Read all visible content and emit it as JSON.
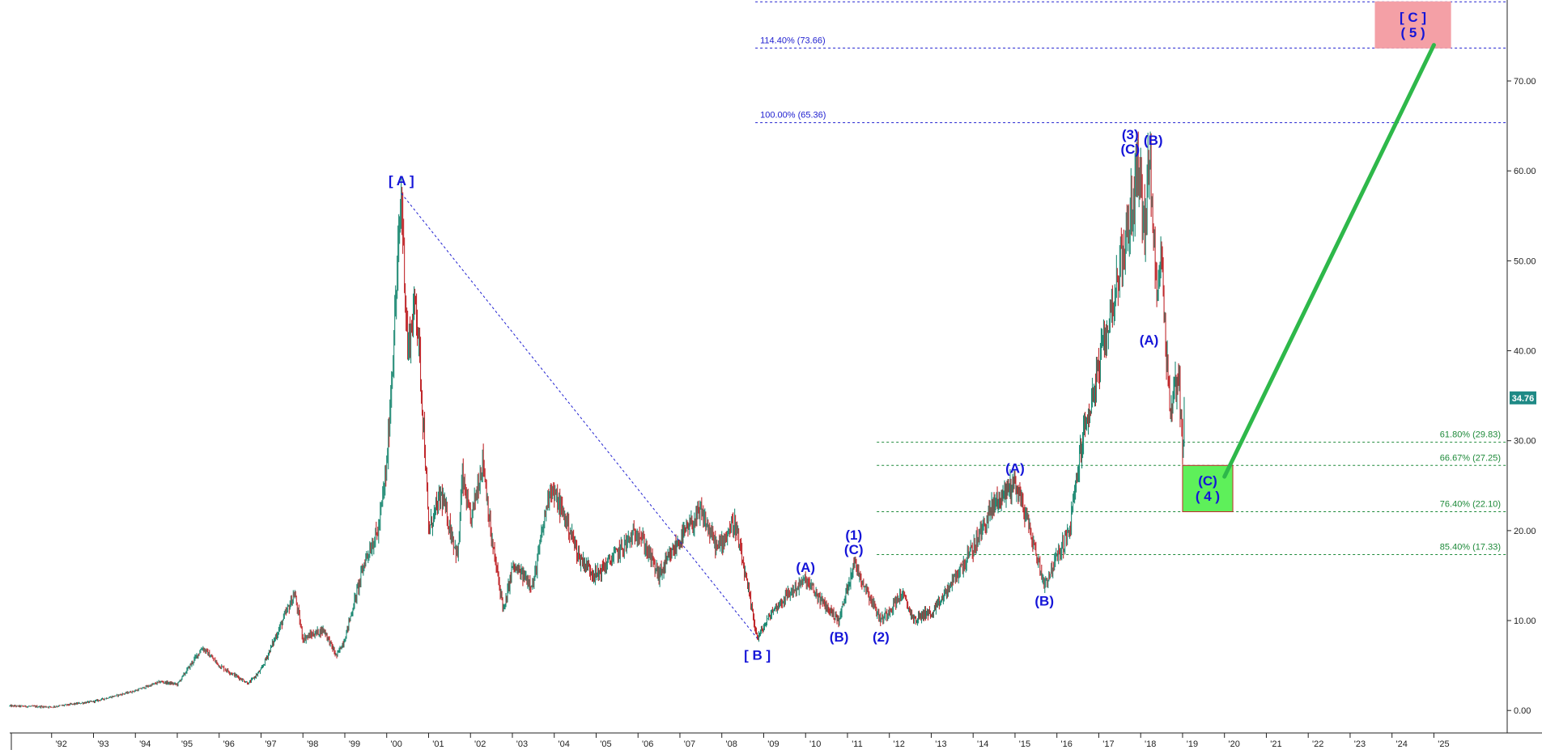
{
  "chart_data": {
    "type": "candlestick",
    "title": "",
    "xlabel": "",
    "ylabel": "",
    "ylim": [
      -2.5,
      79
    ],
    "xlim": [
      1991.0,
      2026.75
    ],
    "grid": false,
    "legend": "none",
    "y_ticks": [
      "0.00",
      "10.00",
      "20.00",
      "30.00",
      "40.00",
      "50.00",
      "60.00",
      "70.00"
    ],
    "x_ticks": [
      "'92",
      "'93",
      "'94",
      "'95",
      "'96",
      "'97",
      "'98",
      "'99",
      "'00",
      "'01",
      "'02",
      "'03",
      "'04",
      "'05",
      "'06",
      "'07",
      "'08",
      "'09",
      "'10",
      "'11",
      "'12",
      "'13",
      "'14",
      "'15",
      "'16",
      "'17",
      "'18",
      "'19",
      "'20",
      "'21",
      "'22",
      "'23",
      "'24",
      "'25"
    ],
    "last_price": "34.76",
    "colors": {
      "up_candle": "#1f8a74",
      "down_candle": "#c0282c",
      "wave_label": "#1515d8",
      "fib_blue": "#2020d0",
      "fib_green": "#1e8a3a",
      "projection": "#2eb84a",
      "target_box": "#f4a0a6",
      "support_box": "#5ef05a",
      "price_badge": "#1f8a86"
    },
    "price_path": [
      [
        1991.0,
        0.5
      ],
      [
        1992.0,
        0.4
      ],
      [
        1993.0,
        1.0
      ],
      [
        1994.0,
        2.2
      ],
      [
        1994.6,
        3.2
      ],
      [
        1995.0,
        2.9
      ],
      [
        1995.6,
        7.0
      ],
      [
        1996.0,
        5.0
      ],
      [
        1996.7,
        3.0
      ],
      [
        1997.0,
        4.5
      ],
      [
        1997.8,
        13.0
      ],
      [
        1998.0,
        8.0
      ],
      [
        1998.5,
        9.0
      ],
      [
        1998.8,
        6.0
      ],
      [
        1999.0,
        8.0
      ],
      [
        1999.5,
        17.0
      ],
      [
        1999.8,
        20.0
      ],
      [
        2000.0,
        27.0
      ],
      [
        2000.2,
        44.0
      ],
      [
        2000.35,
        57.5
      ],
      [
        2000.5,
        40.0
      ],
      [
        2000.7,
        46.0
      ],
      [
        2000.9,
        30.0
      ],
      [
        2001.0,
        20.0
      ],
      [
        2001.3,
        24.0
      ],
      [
        2001.7,
        17.0
      ],
      [
        2001.8,
        26.0
      ],
      [
        2002.0,
        21.0
      ],
      [
        2002.3,
        28.0
      ],
      [
        2002.5,
        19.0
      ],
      [
        2002.8,
        11.0
      ],
      [
        2003.0,
        16.0
      ],
      [
        2003.5,
        14.0
      ],
      [
        2003.9,
        25.0
      ],
      [
        2004.3,
        21.0
      ],
      [
        2004.6,
        17.0
      ],
      [
        2005.0,
        15.0
      ],
      [
        2005.6,
        18.0
      ],
      [
        2006.0,
        20.0
      ],
      [
        2006.5,
        15.0
      ],
      [
        2007.0,
        19.0
      ],
      [
        2007.5,
        22.0
      ],
      [
        2007.9,
        18.0
      ],
      [
        2008.3,
        21.0
      ],
      [
        2008.6,
        14.0
      ],
      [
        2008.85,
        8.0
      ],
      [
        2009.2,
        11.0
      ],
      [
        2009.6,
        13.0
      ],
      [
        2010.0,
        14.5
      ],
      [
        2010.4,
        12.0
      ],
      [
        2010.8,
        10.0
      ],
      [
        2011.15,
        16.5
      ],
      [
        2011.5,
        13.0
      ],
      [
        2011.8,
        10.0
      ],
      [
        2012.3,
        13.0
      ],
      [
        2012.6,
        10.0
      ],
      [
        2012.9,
        11.0
      ],
      [
        2013.0,
        10.5
      ],
      [
        2013.6,
        15.0
      ],
      [
        2014.0,
        18.0
      ],
      [
        2014.5,
        23.0
      ],
      [
        2015.0,
        25.5
      ],
      [
        2015.3,
        21.0
      ],
      [
        2015.7,
        14.0
      ],
      [
        2016.0,
        17.0
      ],
      [
        2016.3,
        20.0
      ],
      [
        2016.6,
        30.0
      ],
      [
        2017.0,
        38.0
      ],
      [
        2017.4,
        47.0
      ],
      [
        2017.8,
        56.0
      ],
      [
        2017.95,
        61.0
      ],
      [
        2018.1,
        53.0
      ],
      [
        2018.2,
        62.0
      ],
      [
        2018.35,
        48.0
      ],
      [
        2018.5,
        50.0
      ],
      [
        2018.7,
        33.0
      ],
      [
        2018.9,
        38.0
      ],
      [
        2019.0,
        29.0
      ],
      [
        2019.05,
        34.76
      ]
    ],
    "wave_labels": [
      {
        "text": "[ A ]",
        "x": 2000.35,
        "y": 57.5,
        "pos": "above"
      },
      {
        "text": "[ B ]",
        "x": 2008.85,
        "y": 8.0,
        "pos": "below"
      },
      {
        "text": "(A)",
        "x": 2010.0,
        "y": 14.5,
        "pos": "above"
      },
      {
        "text": "(B)",
        "x": 2010.8,
        "y": 10.0,
        "pos": "below"
      },
      {
        "text": "(1)",
        "x": 2011.15,
        "y": 16.5,
        "pos": "above2"
      },
      {
        "text": "(C)",
        "x": 2011.15,
        "y": 16.5,
        "pos": "above"
      },
      {
        "text": "(2)",
        "x": 2011.8,
        "y": 10.0,
        "pos": "below"
      },
      {
        "text": "(A)",
        "x": 2015.0,
        "y": 25.5,
        "pos": "above"
      },
      {
        "text": "(B)",
        "x": 2015.7,
        "y": 14.0,
        "pos": "below"
      },
      {
        "text": "(3)",
        "x": 2017.75,
        "y": 61.0,
        "pos": "above2"
      },
      {
        "text": "(C)",
        "x": 2017.75,
        "y": 61.0,
        "pos": "above"
      },
      {
        "text": "(B)",
        "x": 2018.3,
        "y": 62.0,
        "pos": "above"
      },
      {
        "text": "(A)",
        "x": 2018.2,
        "y": 43.0,
        "pos": "below"
      }
    ],
    "ab_link": {
      "from": [
        2000.35,
        57.5
      ],
      "to": [
        2008.85,
        8.0
      ]
    },
    "fib_upper": [
      {
        "label": "",
        "value": 78.8
      },
      {
        "label": "114.40% (73.66)",
        "value": 73.66
      },
      {
        "label": "100.00% (65.36)",
        "value": 65.36
      }
    ],
    "fib_upper_x_start": 2008.8,
    "fib_lower": [
      {
        "label": "61.80% (29.83)",
        "value": 29.83
      },
      {
        "label": "66.67% (27.25)",
        "value": 27.25
      },
      {
        "label": "76.40% (22.10)",
        "value": 22.1
      },
      {
        "label": "85.40% (17.33)",
        "value": 17.33
      }
    ],
    "fib_lower_x_start": 2011.7,
    "target_box": {
      "lines": [
        "[ C ]",
        "( 5 )"
      ],
      "x0": 2023.6,
      "x1": 2025.4,
      "y0": 73.66,
      "y1": 78.8
    },
    "support_box": {
      "lines": [
        "(C)",
        "( 4 )"
      ],
      "x0": 2019.0,
      "x1": 2020.2,
      "y0": 22.1,
      "y1": 27.25
    },
    "projection": {
      "from": [
        2020.0,
        26.0
      ],
      "to": [
        2025.0,
        74.0
      ]
    }
  }
}
